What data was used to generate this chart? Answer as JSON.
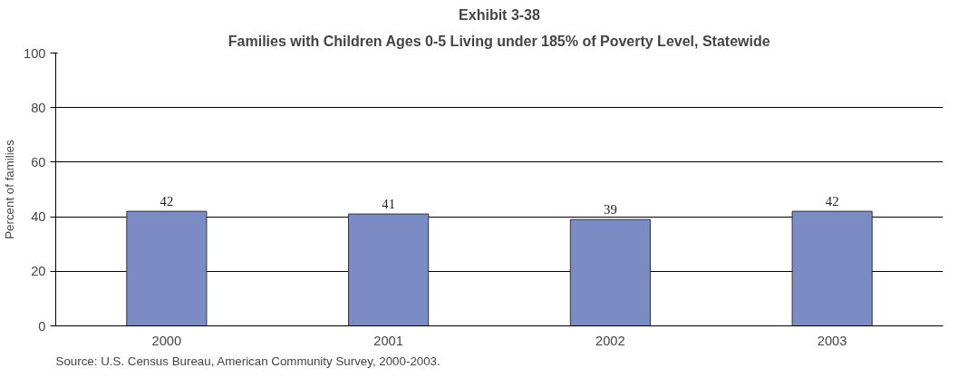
{
  "chart_data": {
    "type": "bar",
    "title": "Exhibit 3-38",
    "subtitle": "Families with Children Ages 0-5 Living under 185% of Poverty Level, Statewide",
    "ylabel": "Percent of families",
    "categories": [
      "2000",
      "2001",
      "2002",
      "2003"
    ],
    "values": [
      42,
      41,
      39,
      42
    ],
    "color": "#7b8cc4",
    "ylim": [
      0,
      100
    ],
    "yticks": [
      0,
      20,
      40,
      60,
      80,
      100
    ],
    "grid": "y",
    "data_labels": true,
    "annotations": [
      "Source: U.S. Census Bureau, American Community Survey, 2000-2003."
    ]
  }
}
